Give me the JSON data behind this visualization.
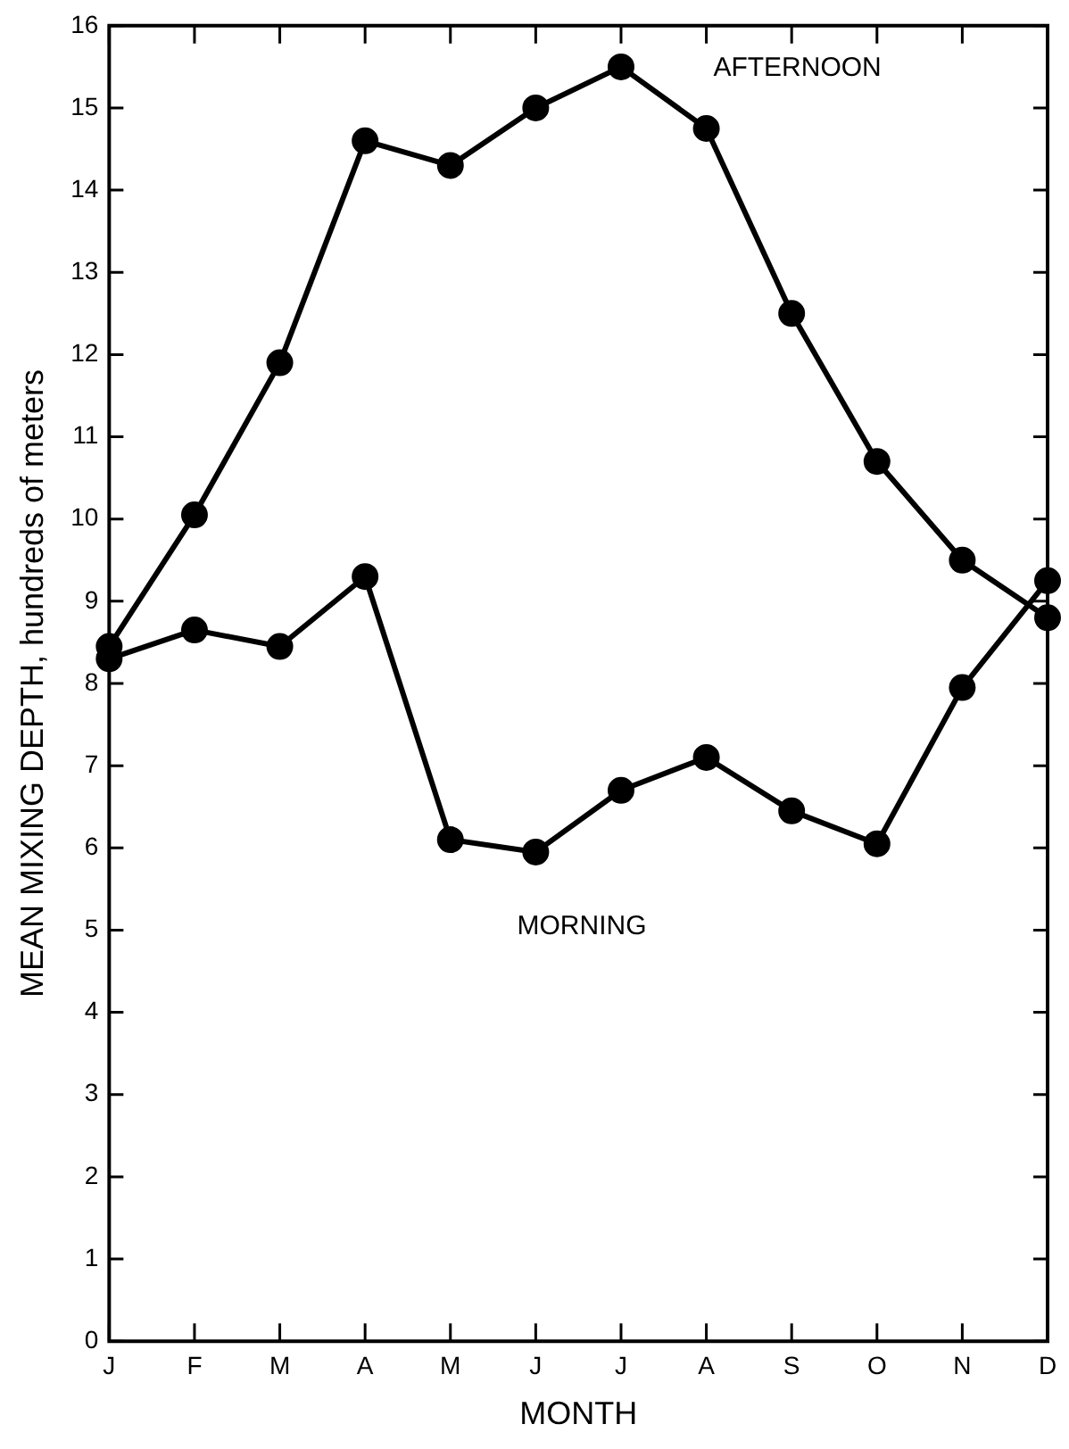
{
  "chart_data": {
    "type": "line",
    "xlabel": "MONTH",
    "ylabel": "MEAN MIXING DEPTH, hundreds of meters",
    "categories": [
      "J",
      "F",
      "M",
      "A",
      "M",
      "J",
      "J",
      "A",
      "S",
      "O",
      "N",
      "D"
    ],
    "ylim": [
      0,
      16
    ],
    "yticks": [
      0,
      1,
      2,
      3,
      4,
      5,
      6,
      7,
      8,
      9,
      10,
      11,
      12,
      13,
      14,
      15,
      16
    ],
    "grid": false,
    "marker": "circle",
    "line_style": "solid",
    "series": [
      {
        "name": "AFTERNOON",
        "color": "#000000",
        "values": [
          8.45,
          10.05,
          11.9,
          14.6,
          14.3,
          15.0,
          15.5,
          14.75,
          12.5,
          10.7,
          9.5,
          8.8
        ]
      },
      {
        "name": "MORNING",
        "color": "#000000",
        "values": [
          8.3,
          8.65,
          8.45,
          9.3,
          6.1,
          5.95,
          6.7,
          7.1,
          6.45,
          6.05,
          7.95,
          9.25
        ]
      }
    ]
  }
}
